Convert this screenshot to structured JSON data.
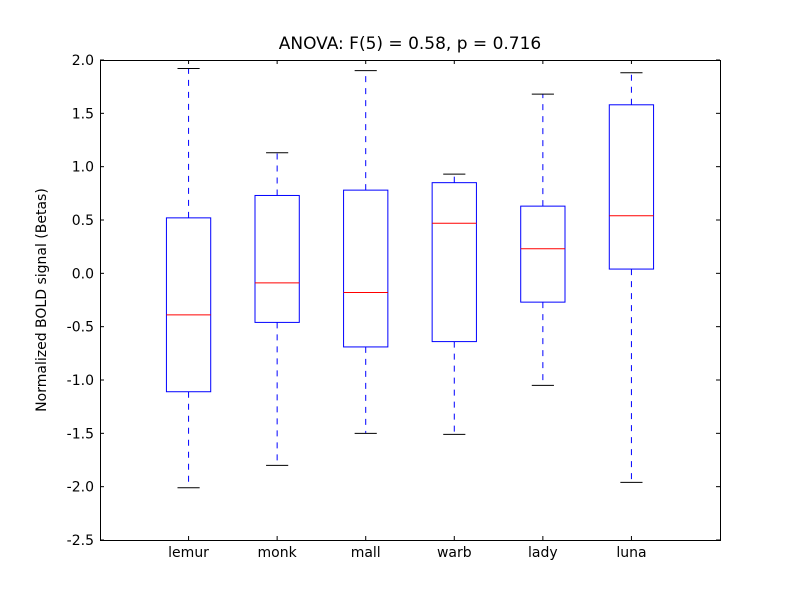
{
  "chart_data": {
    "type": "boxplot",
    "title": "ANOVA: F(5) = 0.58, p = 0.716",
    "xlabel": "",
    "ylabel": "Normalized BOLD signal (Betas)",
    "ylim": [
      -2.5,
      2.0
    ],
    "yticks": [
      "-2.5",
      "-2.0",
      "-1.5",
      "-1.0",
      "-0.5",
      "0.0",
      "0.5",
      "1.0",
      "1.5",
      "2.0"
    ],
    "grid": false,
    "categories": [
      "lemur",
      "monk",
      "mall",
      "warb",
      "lady",
      "luna"
    ],
    "boxes": [
      {
        "whisker_low": -2.01,
        "q1": -1.11,
        "median": -0.39,
        "q3": 0.52,
        "whisker_high": 1.92
      },
      {
        "whisker_low": -1.8,
        "q1": -0.46,
        "median": -0.09,
        "q3": 0.73,
        "whisker_high": 1.13
      },
      {
        "whisker_low": -1.5,
        "q1": -0.69,
        "median": -0.18,
        "q3": 0.78,
        "whisker_high": 1.9
      },
      {
        "whisker_low": -1.51,
        "q1": -0.64,
        "median": 0.47,
        "q3": 0.85,
        "whisker_high": 0.93
      },
      {
        "whisker_low": -1.05,
        "q1": -0.27,
        "median": 0.23,
        "q3": 0.63,
        "whisker_high": 1.68
      },
      {
        "whisker_low": -1.96,
        "q1": 0.04,
        "median": 0.54,
        "q3": 1.58,
        "whisker_high": 1.88
      }
    ],
    "colors": {
      "box": "#0000ff",
      "median": "#ff0000",
      "caps": "#000000"
    }
  }
}
